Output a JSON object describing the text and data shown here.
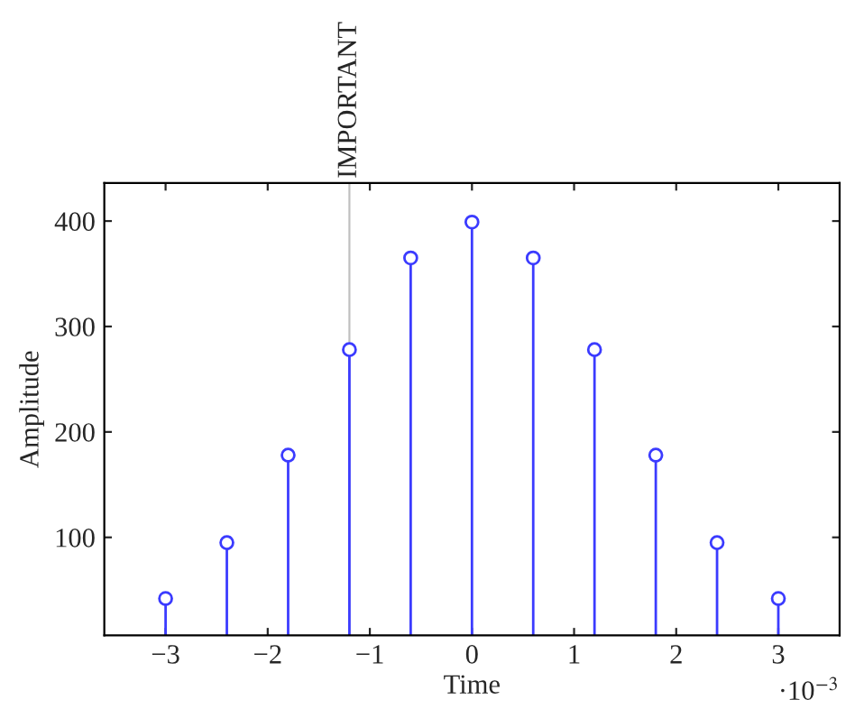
{
  "chart_data": {
    "type": "lollipop",
    "xlabel": "Time",
    "ylabel": "Amplitude",
    "x": [
      -3,
      -2.4,
      -1.8,
      -1.2,
      -0.6,
      0,
      0.6,
      1.2,
      1.8,
      2.4,
      3
    ],
    "series": [
      {
        "color": "#3b3bff",
        "values": [
          42,
          95,
          178,
          278,
          365,
          399,
          365,
          278,
          178,
          95,
          42
        ]
      }
    ],
    "marker": "circle",
    "xlim": [
      -3.6,
      3.6
    ],
    "ylim": [
      7,
      436
    ],
    "xticks": [
      {
        "value": -3,
        "label": "−3"
      },
      {
        "value": -2,
        "label": "−2"
      },
      {
        "value": -1,
        "label": "−1"
      },
      0,
      1,
      2,
      3
    ],
    "yticks": [
      100,
      200,
      300,
      400
    ],
    "ref_lines": [
      {
        "axis": "x",
        "value": -1.2,
        "label": "IMPORTANT",
        "color": "#c0c0c0"
      }
    ],
    "annotations": [
      "·10$^{−3}$"
    ],
    "grid": false,
    "legend": false
  }
}
